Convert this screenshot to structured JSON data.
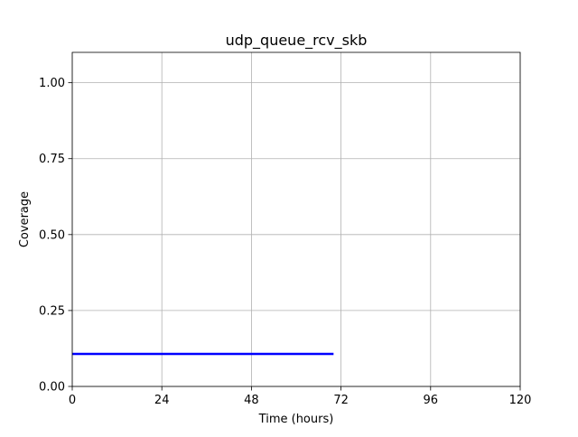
{
  "chart_data": {
    "type": "line",
    "title": "udp_queue_rcv_skb",
    "xlabel": "Time (hours)",
    "ylabel": "Coverage",
    "xlim": [
      0,
      120
    ],
    "ylim": [
      0,
      1.1
    ],
    "xticks": [
      0,
      24,
      48,
      72,
      96,
      120
    ],
    "xtick_labels": [
      "0",
      "24",
      "48",
      "72",
      "96",
      "120"
    ],
    "yticks": [
      0,
      0.25,
      0.5,
      0.75,
      1.0
    ],
    "ytick_labels": [
      "0.00",
      "0.25",
      "0.50",
      "0.75",
      "1.00"
    ],
    "grid": true,
    "series": [
      {
        "color": "#0000ff",
        "x": [
          0,
          70
        ],
        "y": [
          0.107,
          0.107
        ]
      }
    ]
  }
}
